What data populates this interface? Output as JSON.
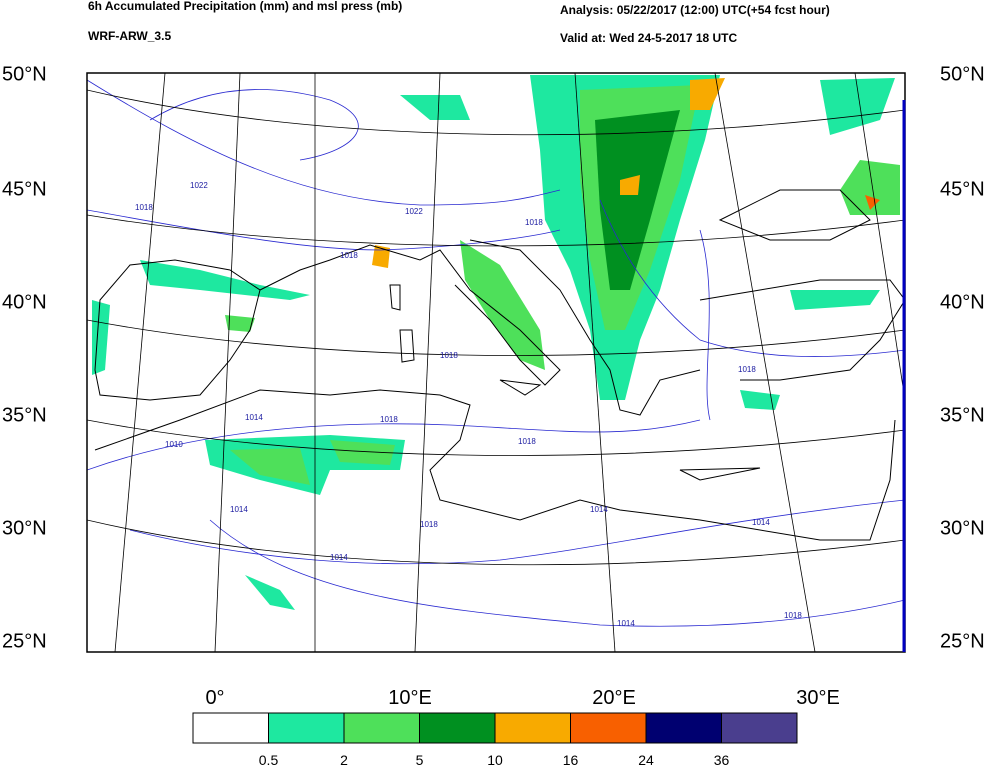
{
  "header": {
    "title": "6h Accumulated Precipitation (mm) and msl press (mb)",
    "model": "WRF-ARW_3.5",
    "analysis": "Analysis: 05/22/2017 (12:00) UTC(+54 fcst hour)",
    "valid": "Valid at: Wed 24-5-2017  18 UTC"
  },
  "map": {
    "lat_labels": [
      "50°N",
      "45°N",
      "40°N",
      "35°N",
      "30°N",
      "25°N"
    ],
    "lon_labels": [
      "0°",
      "10°E",
      "20°E",
      "30°E"
    ],
    "isobar_labels": [
      "1022",
      "1018",
      "1022",
      "1018",
      "1018",
      "1018",
      "1014",
      "1010",
      "1018",
      "1018",
      "1014",
      "1018",
      "1014",
      "1014",
      "1014",
      "1018",
      "1014",
      "1018"
    ]
  },
  "legend": {
    "colors": [
      "#ffffff",
      "#1ee8a0",
      "#4ee05a",
      "#009020",
      "#f8aa00",
      "#f86000",
      "#000070",
      "#4a3e8e"
    ],
    "labels": [
      "0.5",
      "2",
      "5",
      "10",
      "16",
      "24",
      "36"
    ]
  }
}
